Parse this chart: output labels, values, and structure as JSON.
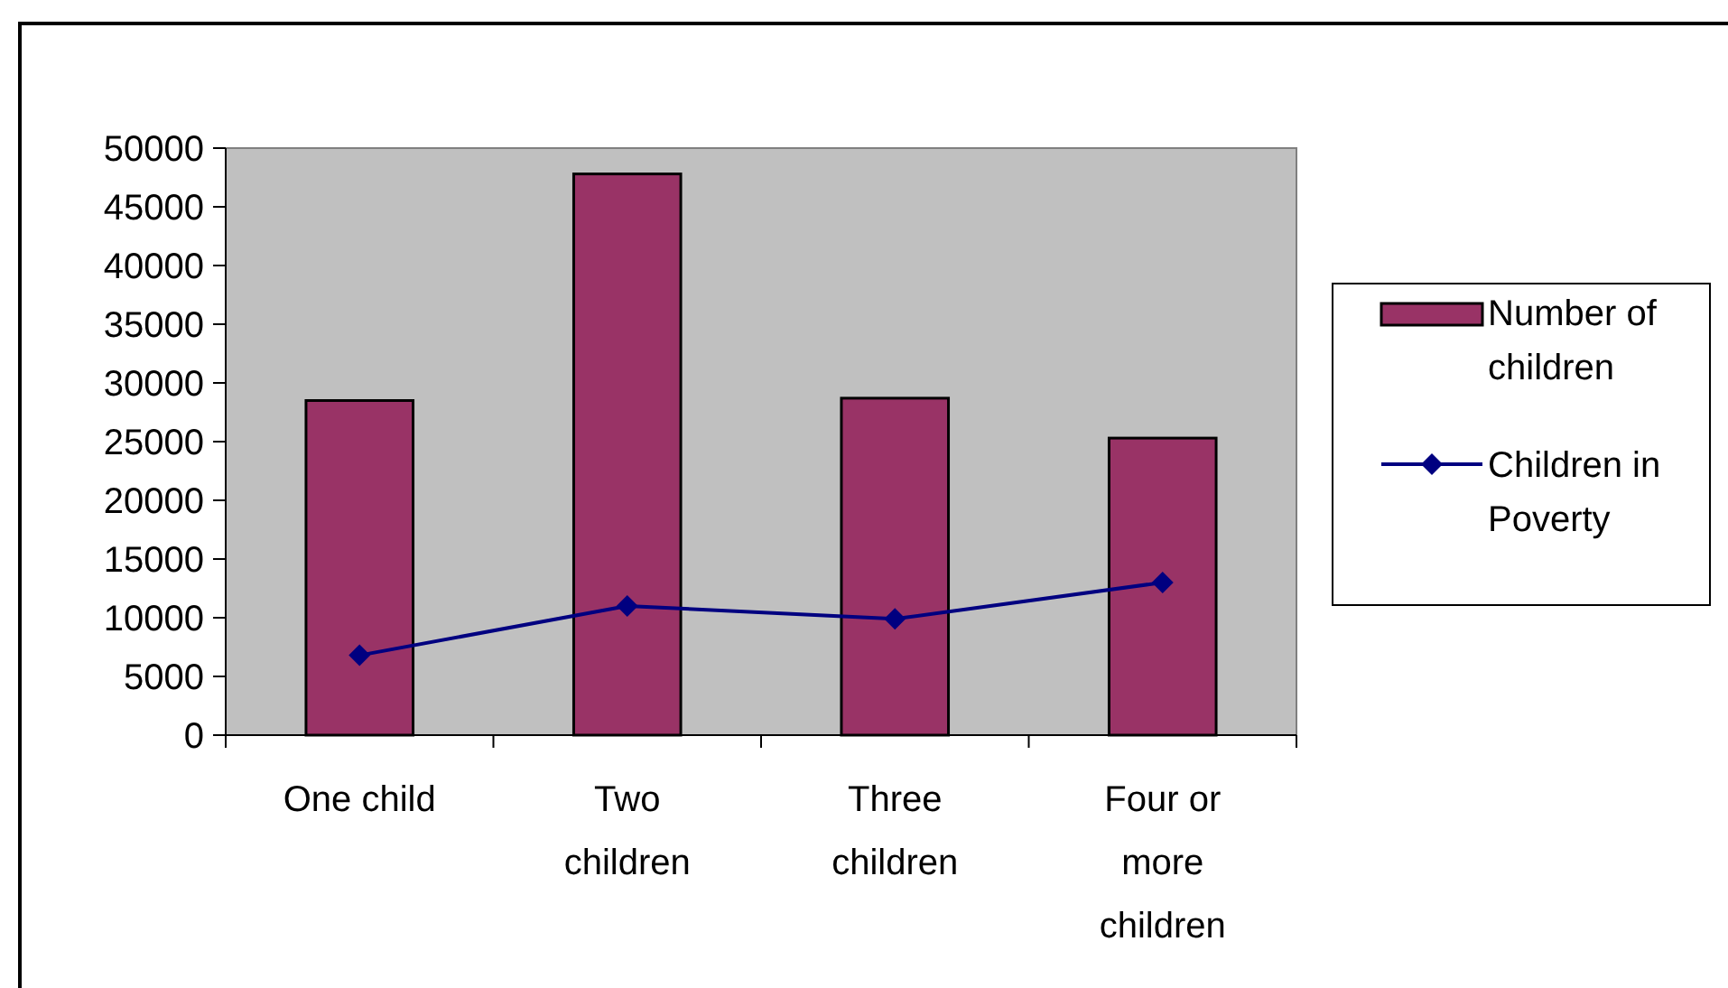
{
  "chart_data": {
    "type": "bar",
    "categories": [
      "One child",
      "Two children",
      "Three children",
      "Four or more children"
    ],
    "series": [
      {
        "name": "Number of children",
        "color": "#993366",
        "values": [
          28500,
          47800,
          28700,
          25300
        ]
      },
      {
        "name": "Children in Poverty",
        "type": "line",
        "color": "#000080",
        "values": [
          6800,
          11000,
          9900,
          13000
        ],
        "marker": "diamond"
      }
    ],
    "ylim": [
      0,
      50000
    ],
    "yticks": [
      0,
      5000,
      10000,
      15000,
      20000,
      25000,
      30000,
      35000,
      40000,
      45000,
      50000
    ],
    "grid": false,
    "legend": "right"
  }
}
